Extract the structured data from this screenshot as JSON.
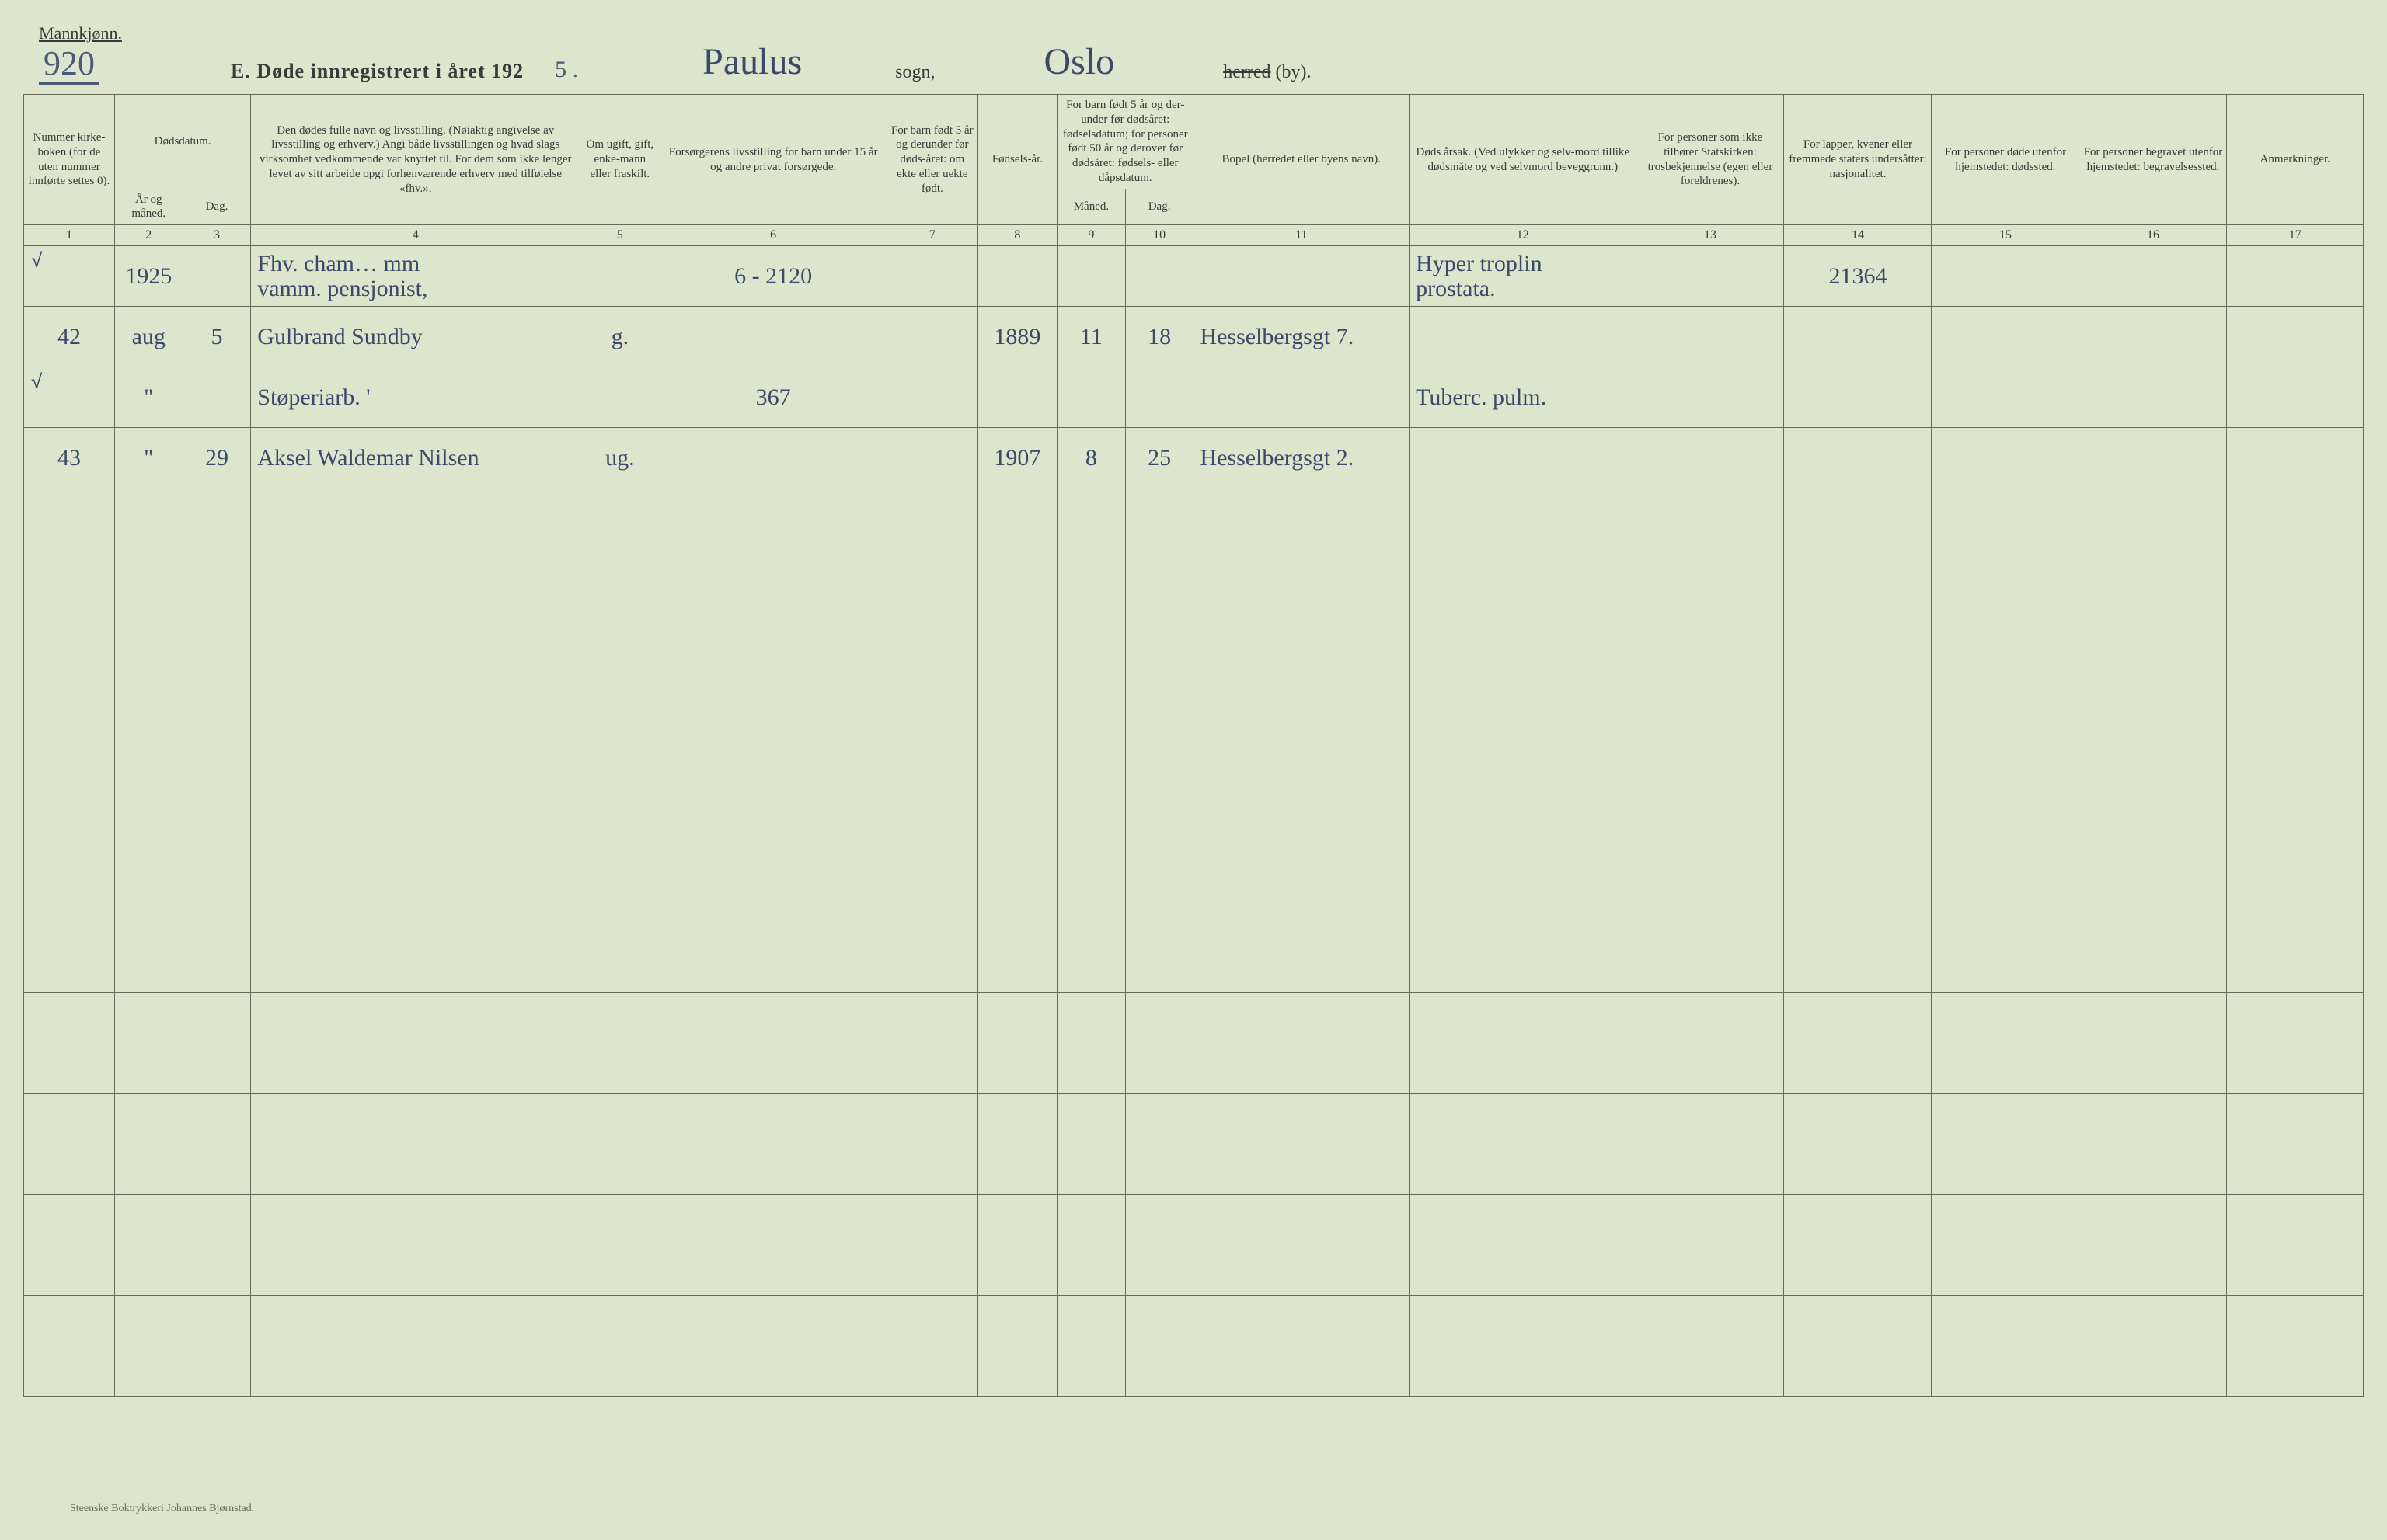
{
  "header": {
    "gender": "Mannkjønn.",
    "page_number": "920",
    "title_prefix": "E.  Døde innregistrert i året 192",
    "title_year_suffix": "5 .",
    "sogn_name": "Paulus",
    "sogn_label": "sogn,",
    "herred_name": "Oslo",
    "herred_label_strike": "herred",
    "herred_label_tail": " (by)."
  },
  "columns": {
    "c1": "Nummer kirke-boken (for de uten nummer innførte settes 0).",
    "c2": "Dødsdatum.",
    "c2a": "År og måned.",
    "c2b": "Dag.",
    "c4": "Den dødes fulle navn og livsstilling. (Nøiaktig angivelse av livsstilling og erhverv.) Angi både livsstillingen og hvad slags virksomhet vedkommende var knyttet til. For dem som ikke lenger levet av sitt arbeide opgi forhenværende erhverv med tilføielse «fhv.».",
    "c5": "Om ugift, gift, enke-mann eller fraskilt.",
    "c6": "Forsørgerens livsstilling for barn under 15 år og andre privat forsørgede.",
    "c7": "For barn født 5 år og derunder før døds-året: om ekte eller uekte født.",
    "c8": "Fødsels-år.",
    "c9_10": "For barn født 5 år og der-under før dødsåret: fødselsdatum; for personer født 50 år og derover før dødsåret: fødsels- eller dåpsdatum.",
    "c9": "Måned.",
    "c10": "Dag.",
    "c11": "Bopel (herredet eller byens navn).",
    "c12": "Døds årsak. (Ved ulykker og selv-mord tillike dødsmåte og ved selvmord beveggrunn.)",
    "c13": "For personer som ikke tilhører Statskirken: trosbekjennelse (egen eller foreldrenes).",
    "c14": "For lapper, kvener eller fremmede staters undersåtter: nasjonalitet.",
    "c15": "For personer døde utenfor hjemstedet: dødssted.",
    "c16": "For personer begravet utenfor hjemstedet: begravelsessted.",
    "c17": "Anmerkninger."
  },
  "colnums": [
    "1",
    "2",
    "3",
    "4",
    "5",
    "6",
    "7",
    "8",
    "9",
    "10",
    "11",
    "12",
    "13",
    "14",
    "15",
    "16",
    "17"
  ],
  "col_widths_pct": [
    4.0,
    3.0,
    3.0,
    14.5,
    3.5,
    10.0,
    4.0,
    3.5,
    3.0,
    3.0,
    9.5,
    10.0,
    6.5,
    6.5,
    6.5,
    6.5,
    6.0
  ],
  "rows": [
    {
      "tick": "√",
      "num": "",
      "year_month": "1925",
      "day": "",
      "name": "Fhv. cham… mm\nvamm. pensjonist,",
      "status": "",
      "provider": "6 - 2120",
      "legit": "",
      "birth_year": "",
      "birth_month": "",
      "birth_day": "",
      "residence": "",
      "cause": "Hyper troplin\nprostata.",
      "faith": "",
      "nat": "21364",
      "deathplace": "",
      "burial": "",
      "notes": ""
    },
    {
      "tick": "",
      "num": "42",
      "year_month": "aug",
      "day": "5",
      "name": "Gulbrand Sundby",
      "status": "g.",
      "provider": "",
      "legit": "",
      "birth_year": "1889",
      "birth_month": "11",
      "birth_day": "18",
      "residence": "Hesselbergsgt 7.",
      "cause": "",
      "faith": "",
      "nat": "",
      "deathplace": "",
      "burial": "",
      "notes": ""
    },
    {
      "tick": "√",
      "num": "",
      "year_month": "\"",
      "day": "",
      "name": "Støperiarb.              '",
      "status": "",
      "provider": "367",
      "legit": "",
      "birth_year": "",
      "birth_month": "",
      "birth_day": "",
      "residence": "",
      "cause": "Tuberc. pulm.",
      "faith": "",
      "nat": "",
      "deathplace": "",
      "burial": "",
      "notes": ""
    },
    {
      "tick": "",
      "num": "43",
      "year_month": "\"",
      "day": "29",
      "name": "Aksel Waldemar Nilsen",
      "status": "ug.",
      "provider": "",
      "legit": "",
      "birth_year": "1907",
      "birth_month": "8",
      "birth_day": "25",
      "residence": "Hesselbergsgt 2.",
      "cause": "",
      "faith": "",
      "nat": "",
      "deathplace": "",
      "burial": "",
      "notes": ""
    }
  ],
  "empty_row_count": 9,
  "footer": "Steenske Boktrykkeri Johannes Bjørnstad.",
  "colors": {
    "background": "#dde5cc",
    "rule": "#6a6a5a",
    "ink_print": "#3a3a3a",
    "ink_hand": "#3a4a6a"
  }
}
